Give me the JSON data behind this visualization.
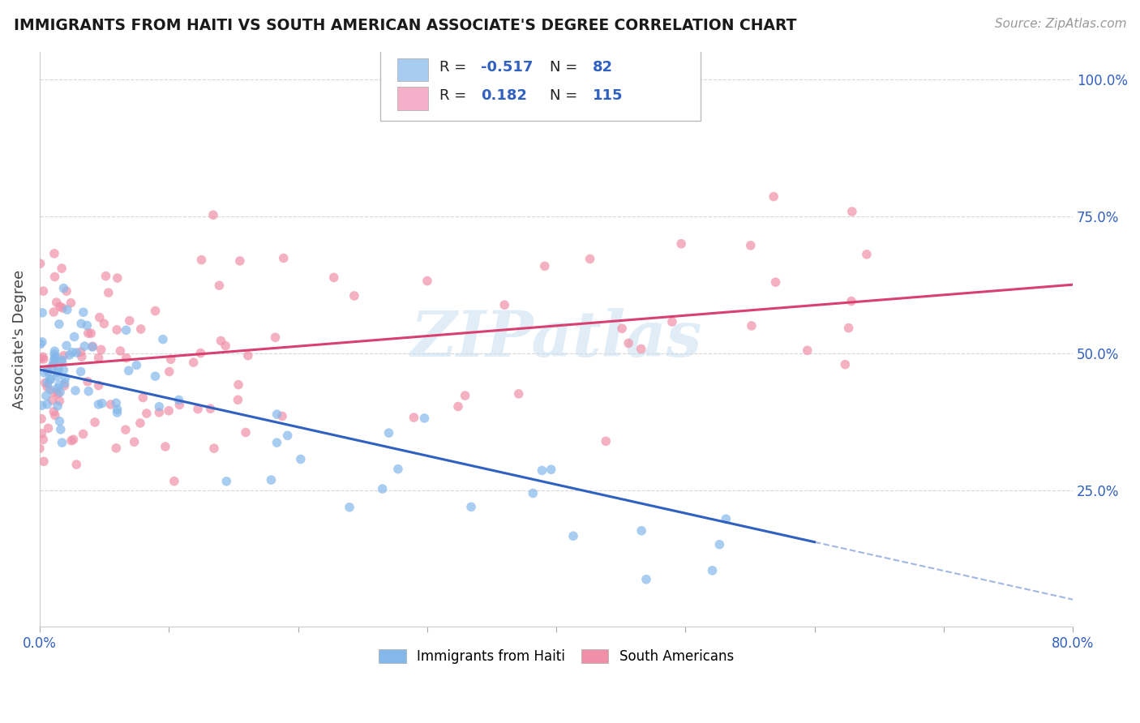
{
  "title": "IMMIGRANTS FROM HAITI VS SOUTH AMERICAN ASSOCIATE'S DEGREE CORRELATION CHART",
  "source": "Source: ZipAtlas.com",
  "ylabel": "Associate's Degree",
  "right_yticks": [
    "25.0%",
    "50.0%",
    "75.0%",
    "100.0%"
  ],
  "right_ytick_vals": [
    0.25,
    0.5,
    0.75,
    1.0
  ],
  "haiti_color": "#85b8ea",
  "sa_color": "#f090a8",
  "haiti_line_color": "#3060c0",
  "sa_line_color": "#d84070",
  "background_color": "#ffffff",
  "watermark": "ZIPatlas",
  "haiti_R": -0.517,
  "haiti_N": 82,
  "sa_R": 0.182,
  "sa_N": 115,
  "xlim": [
    0.0,
    0.8
  ],
  "ylim": [
    0.0,
    1.05
  ],
  "haiti_line_x0": 0.0,
  "haiti_line_y0": 0.47,
  "haiti_line_x1": 0.6,
  "haiti_line_y1": 0.155,
  "haiti_line_xdash": 0.8,
  "haiti_line_ydash": 0.045,
  "sa_line_x0": 0.0,
  "sa_line_y0": 0.475,
  "sa_line_x1": 0.8,
  "sa_line_y1": 0.625,
  "legend_blue_color": "#a8ccf0",
  "legend_pink_color": "#f4b0c8",
  "legend_r1": "-0.517",
  "legend_n1": "82",
  "legend_r2": "0.182",
  "legend_n2": "115"
}
